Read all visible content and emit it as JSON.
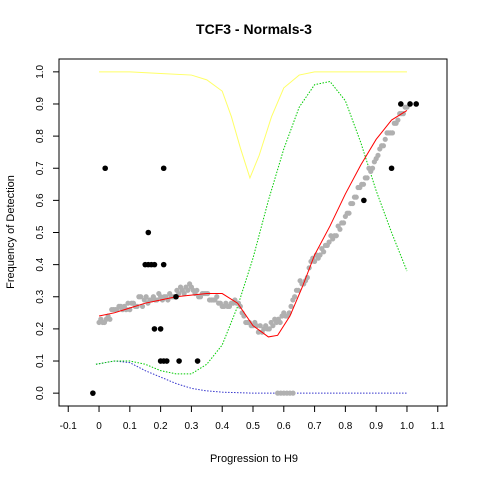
{
  "chart_data": {
    "type": "scatter",
    "title": "TCF3 - Normals-3",
    "xlabel": "Progression to H9",
    "ylabel": "Frequency of Detection",
    "xlim": [
      -0.13,
      1.13
    ],
    "ylim": [
      -0.04,
      1.04
    ],
    "x_ticks": [
      "-0.1",
      "0",
      "0.1",
      "0.2",
      "0.3",
      "0.4",
      "0.5",
      "0.6",
      "0.7",
      "0.8",
      "0.9",
      "1.0",
      "1.1"
    ],
    "x_tick_values": [
      -0.1,
      0,
      0.1,
      0.2,
      0.3,
      0.4,
      0.5,
      0.6,
      0.7,
      0.8,
      0.9,
      1.0,
      1.1
    ],
    "y_ticks": [
      "0.0",
      "0.1",
      "0.2",
      "0.3",
      "0.4",
      "0.5",
      "0.6",
      "0.7",
      "0.8",
      "0.9",
      "1.0"
    ],
    "y_tick_values": [
      0,
      0.1,
      0.2,
      0.3,
      0.4,
      0.5,
      0.6,
      0.7,
      0.8,
      0.9,
      1.0
    ],
    "grid": false,
    "legend": "none",
    "colors": {
      "gray_points": "#b0b0b0",
      "black_points": "#000000",
      "red_fit": "#ff0000",
      "green_curve": "#00cc00",
      "yellow_curve": "#ffff66",
      "blue_curve": "#3333cc"
    },
    "black_points": [
      [
        -0.02,
        0.0
      ],
      [
        0.02,
        0.7
      ],
      [
        0.21,
        0.7
      ],
      [
        0.15,
        0.4
      ],
      [
        0.16,
        0.4
      ],
      [
        0.17,
        0.4
      ],
      [
        0.18,
        0.4
      ],
      [
        0.21,
        0.4
      ],
      [
        0.16,
        0.5
      ],
      [
        0.25,
        0.3
      ],
      [
        0.18,
        0.2
      ],
      [
        0.2,
        0.2
      ],
      [
        0.2,
        0.1
      ],
      [
        0.21,
        0.1
      ],
      [
        0.22,
        0.1
      ],
      [
        0.26,
        0.1
      ],
      [
        0.32,
        0.1
      ],
      [
        0.86,
        0.6
      ],
      [
        0.95,
        0.7
      ],
      [
        0.98,
        0.9
      ],
      [
        1.01,
        0.9
      ],
      [
        1.03,
        0.9
      ]
    ],
    "gray_trend": [
      [
        0.0,
        0.22
      ],
      [
        0.03,
        0.24
      ],
      [
        0.05,
        0.26
      ],
      [
        0.08,
        0.27
      ],
      [
        0.12,
        0.28
      ],
      [
        0.16,
        0.29
      ],
      [
        0.2,
        0.3
      ],
      [
        0.25,
        0.31
      ],
      [
        0.3,
        0.33
      ],
      [
        0.35,
        0.3
      ],
      [
        0.4,
        0.28
      ],
      [
        0.45,
        0.27
      ],
      [
        0.48,
        0.23
      ],
      [
        0.52,
        0.2
      ],
      [
        0.56,
        0.21
      ],
      [
        0.6,
        0.24
      ],
      [
        0.62,
        0.26
      ],
      [
        0.65,
        0.33
      ],
      [
        0.7,
        0.42
      ],
      [
        0.75,
        0.48
      ],
      [
        0.8,
        0.55
      ],
      [
        0.85,
        0.64
      ],
      [
        0.9,
        0.74
      ],
      [
        0.95,
        0.82
      ],
      [
        0.98,
        0.86
      ],
      [
        1.0,
        0.88
      ]
    ],
    "gray_low_cluster": [
      [
        0.58,
        0.0
      ],
      [
        0.59,
        0.0
      ],
      [
        0.6,
        0.0
      ],
      [
        0.61,
        0.0
      ],
      [
        0.62,
        0.0
      ],
      [
        0.63,
        0.0
      ]
    ],
    "red_fit": [
      [
        0.0,
        0.24
      ],
      [
        0.05,
        0.25
      ],
      [
        0.1,
        0.265
      ],
      [
        0.15,
        0.28
      ],
      [
        0.2,
        0.29
      ],
      [
        0.25,
        0.3
      ],
      [
        0.3,
        0.305
      ],
      [
        0.35,
        0.31
      ],
      [
        0.4,
        0.31
      ],
      [
        0.45,
        0.28
      ],
      [
        0.5,
        0.21
      ],
      [
        0.55,
        0.175
      ],
      [
        0.58,
        0.18
      ],
      [
        0.62,
        0.24
      ],
      [
        0.66,
        0.33
      ],
      [
        0.7,
        0.43
      ],
      [
        0.75,
        0.52
      ],
      [
        0.8,
        0.62
      ],
      [
        0.85,
        0.71
      ],
      [
        0.9,
        0.79
      ],
      [
        0.95,
        0.85
      ],
      [
        1.0,
        0.88
      ]
    ],
    "green_curve": [
      [
        -0.01,
        0.09
      ],
      [
        0.05,
        0.1
      ],
      [
        0.1,
        0.1
      ],
      [
        0.15,
        0.09
      ],
      [
        0.2,
        0.07
      ],
      [
        0.25,
        0.06
      ],
      [
        0.3,
        0.06
      ],
      [
        0.35,
        0.09
      ],
      [
        0.4,
        0.15
      ],
      [
        0.45,
        0.27
      ],
      [
        0.5,
        0.42
      ],
      [
        0.55,
        0.6
      ],
      [
        0.6,
        0.76
      ],
      [
        0.65,
        0.89
      ],
      [
        0.7,
        0.96
      ],
      [
        0.75,
        0.97
      ],
      [
        0.8,
        0.91
      ],
      [
        0.85,
        0.78
      ],
      [
        0.9,
        0.63
      ],
      [
        0.95,
        0.5
      ],
      [
        1.0,
        0.38
      ]
    ],
    "yellow_curve": [
      [
        0.0,
        1.0
      ],
      [
        0.1,
        1.0
      ],
      [
        0.2,
        0.995
      ],
      [
        0.3,
        0.99
      ],
      [
        0.35,
        0.975
      ],
      [
        0.4,
        0.94
      ],
      [
        0.43,
        0.86
      ],
      [
        0.46,
        0.76
      ],
      [
        0.49,
        0.67
      ],
      [
        0.52,
        0.74
      ],
      [
        0.56,
        0.86
      ],
      [
        0.6,
        0.95
      ],
      [
        0.65,
        0.99
      ],
      [
        0.7,
        1.0
      ],
      [
        0.8,
        1.0
      ],
      [
        0.9,
        1.0
      ],
      [
        1.0,
        1.0
      ]
    ],
    "blue_curve": [
      [
        -0.01,
        0.09
      ],
      [
        0.05,
        0.1
      ],
      [
        0.1,
        0.095
      ],
      [
        0.15,
        0.07
      ],
      [
        0.2,
        0.05
      ],
      [
        0.25,
        0.03
      ],
      [
        0.3,
        0.015
      ],
      [
        0.35,
        0.007
      ],
      [
        0.4,
        0.003
      ],
      [
        0.5,
        0.0
      ],
      [
        0.6,
        0.0
      ],
      [
        0.8,
        0.0
      ],
      [
        1.0,
        0.0
      ]
    ]
  }
}
